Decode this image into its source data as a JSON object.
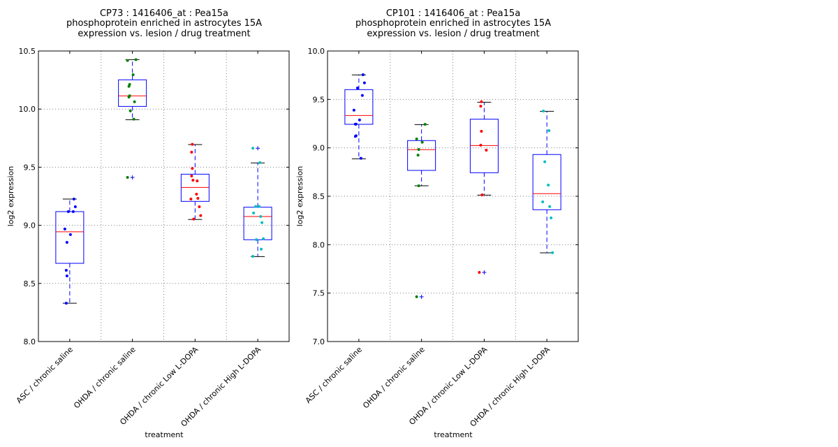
{
  "chart_data": [
    {
      "type": "box",
      "title_lines": [
        "CP73 : 1416406_at : Pea15a",
        "phosphoprotein enriched in astrocytes 15A",
        "expression vs. lesion / drug treatment"
      ],
      "xlabel": "treatment",
      "ylabel": "log2 expression",
      "ylim": [
        8.0,
        10.5
      ],
      "yticks": [
        8.0,
        8.5,
        9.0,
        9.5,
        10.0,
        10.5
      ],
      "ytick_labels": [
        "8.0",
        "8.5",
        "9.0",
        "9.5",
        "10.0",
        "10.5"
      ],
      "grid": true,
      "categories": [
        "ASC / chronic saline",
        "OHDA / chronic saline",
        "OHDA / chronic Low L-DOPA",
        "OHDA / chronic High L-DOPA"
      ],
      "groups": [
        {
          "color": "#0000ff",
          "whisker_low": 8.33,
          "q1": 8.673,
          "median": 8.944,
          "q3": 9.118,
          "whisker_high": 9.226,
          "outliers": [],
          "points": [
            9.226,
            9.16,
            9.118,
            9.118,
            8.968,
            8.92,
            8.853,
            8.613,
            8.565,
            8.33
          ]
        },
        {
          "color": "#008000",
          "whisker_low": 9.909,
          "q1": 10.023,
          "median": 10.114,
          "q3": 10.252,
          "whisker_high": 10.426,
          "outliers": [
            9.412
          ],
          "points": [
            10.426,
            10.418,
            10.296,
            10.212,
            10.196,
            10.115,
            10.103,
            10.063,
            9.985,
            9.913,
            9.412
          ]
        },
        {
          "color": "#ff0000",
          "whisker_low": 9.05,
          "q1": 9.206,
          "median": 9.326,
          "q3": 9.44,
          "whisker_high": 9.695,
          "outliers": [],
          "points": [
            9.697,
            9.629,
            9.49,
            9.424,
            9.382,
            9.388,
            9.268,
            9.226,
            9.232,
            9.16,
            9.084,
            9.054
          ]
        },
        {
          "color": "#00bfbf",
          "whisker_low": 8.731,
          "q1": 8.876,
          "median": 9.076,
          "q3": 9.156,
          "whisker_high": 9.537,
          "outliers": [
            9.663
          ],
          "points": [
            9.663,
            9.539,
            9.162,
            9.162,
            9.106,
            9.076,
            9.023,
            8.885,
            8.877,
            8.795,
            8.733
          ]
        }
      ]
    },
    {
      "type": "box",
      "title_lines": [
        "CP101 : 1416406_at : Pea15a",
        "phosphoprotein enriched in astrocytes 15A",
        "expression vs. lesion / drug treatment"
      ],
      "xlabel": "treatment",
      "ylabel": "log2 expression",
      "ylim": [
        7.0,
        10.0
      ],
      "yticks": [
        7.0,
        7.5,
        8.0,
        8.5,
        9.0,
        9.5,
        10.0
      ],
      "ytick_labels": [
        "7.0",
        "7.5",
        "8.0",
        "8.5",
        "9.0",
        "9.5",
        "10.0"
      ],
      "grid": true,
      "categories": [
        "ASC / chronic saline",
        "OHDA / chronic saline",
        "OHDA / chronic Low L-DOPA",
        "OHDA / chronic High L-DOPA"
      ],
      "groups": [
        {
          "color": "#0000ff",
          "whisker_low": 8.887,
          "q1": 9.243,
          "median": 9.334,
          "q3": 9.601,
          "whisker_high": 9.753,
          "outliers": [],
          "points": [
            9.755,
            9.671,
            9.618,
            9.541,
            9.389,
            9.288,
            9.245,
            9.245,
            9.125,
            9.118,
            8.892
          ]
        },
        {
          "color": "#008000",
          "whisker_low": 8.608,
          "q1": 8.767,
          "median": 8.981,
          "q3": 9.075,
          "whisker_high": 9.24,
          "outliers": [
            7.462
          ],
          "points": [
            9.243,
            9.091,
            9.058,
            8.983,
            8.925,
            8.608,
            7.462
          ]
        },
        {
          "color": "#ff0000",
          "whisker_low": 8.512,
          "q1": 8.743,
          "median": 9.024,
          "q3": 9.296,
          "whisker_high": 9.471,
          "outliers": [
            7.714
          ],
          "points": [
            9.476,
            9.43,
            9.171,
            9.027,
            8.976,
            8.514,
            7.714
          ]
        },
        {
          "color": "#00bfbf",
          "whisker_low": 7.916,
          "q1": 8.361,
          "median": 8.527,
          "q3": 8.931,
          "whisker_high": 9.377,
          "outliers": [],
          "points": [
            9.38,
            9.178,
            8.856,
            8.615,
            8.442,
            8.394,
            8.276,
            7.918
          ]
        }
      ]
    }
  ]
}
